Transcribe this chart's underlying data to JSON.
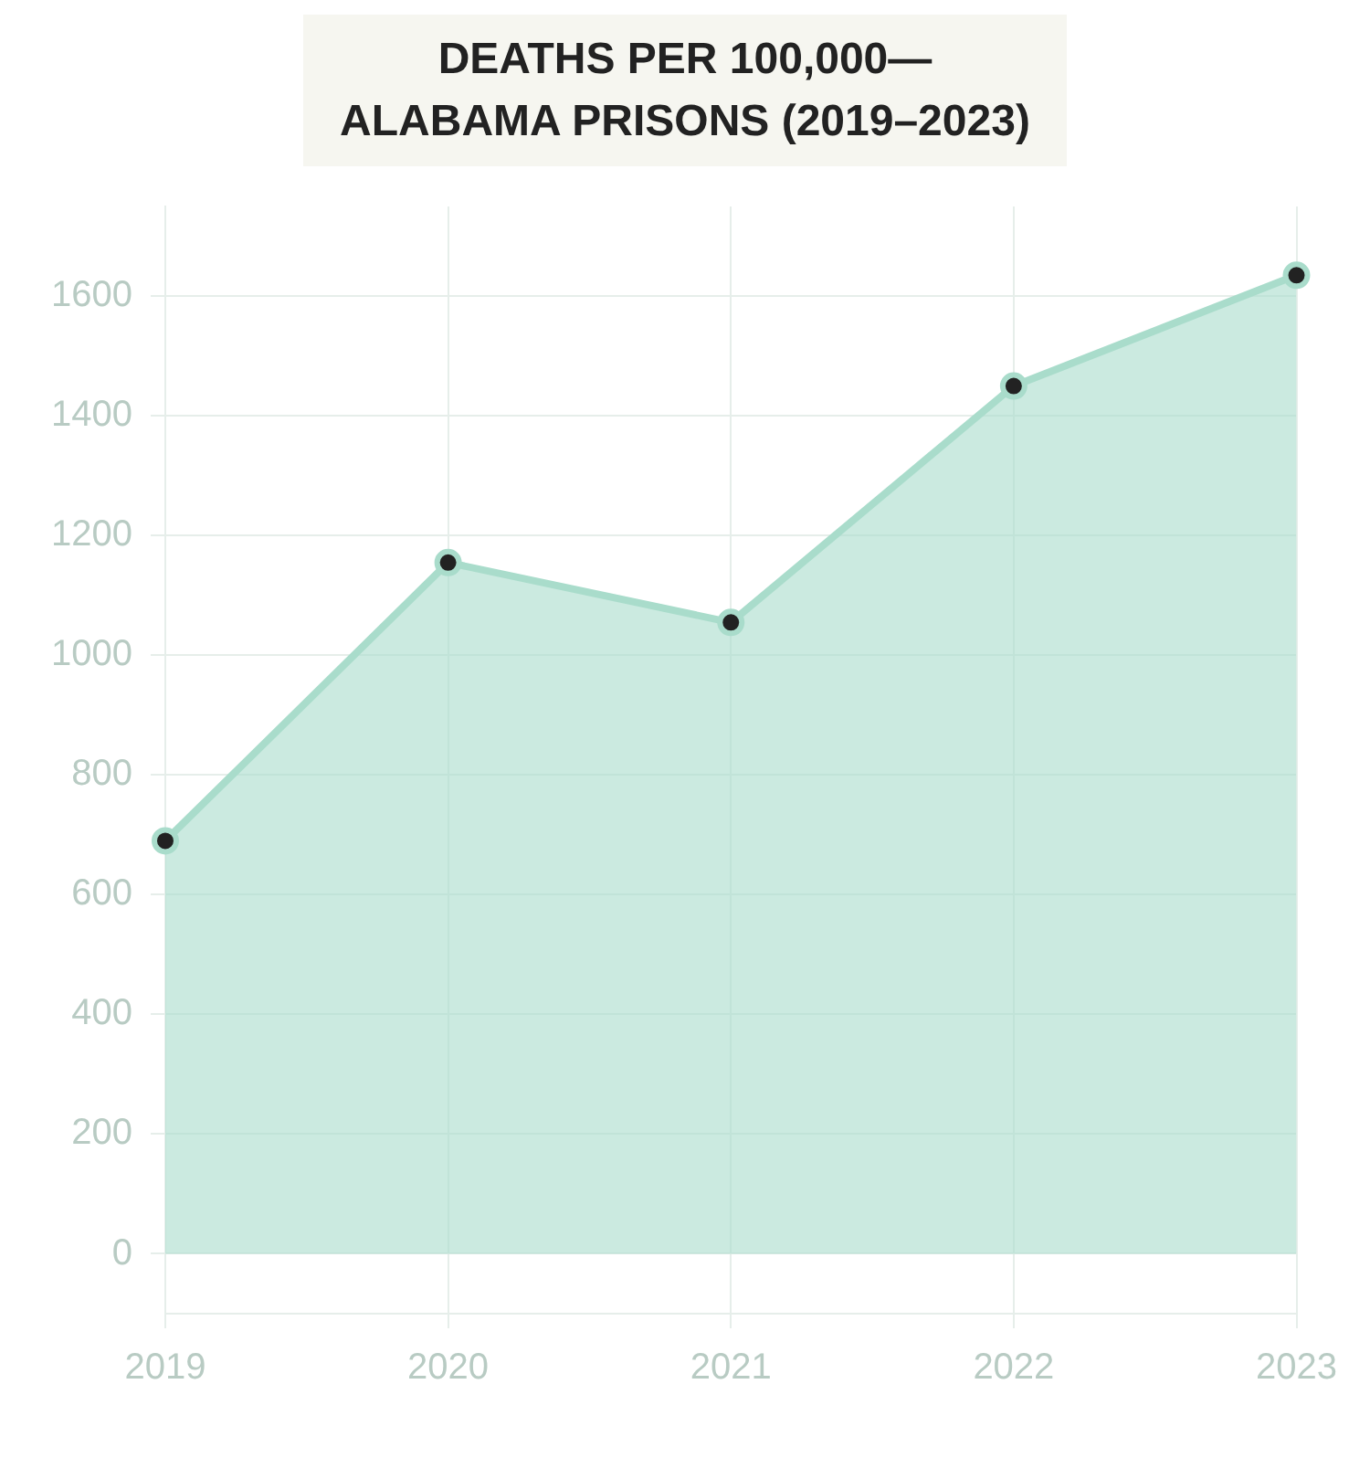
{
  "chart_data": {
    "type": "area",
    "title": "DEATHS PER 100,000—\nALABAMA PRISONS (2019–2023)",
    "categories": [
      "2019",
      "2020",
      "2021",
      "2022",
      "2023"
    ],
    "series": [
      {
        "color": "#a9dccb",
        "values": [
          690,
          1155,
          1055,
          1450,
          1635
        ]
      }
    ],
    "ylim": [
      -100,
      1750
    ],
    "yticks": [
      0,
      200,
      400,
      600,
      800,
      1000,
      1200,
      1400,
      1600
    ],
    "grid": true,
    "marker": "circle",
    "legend": false
  }
}
